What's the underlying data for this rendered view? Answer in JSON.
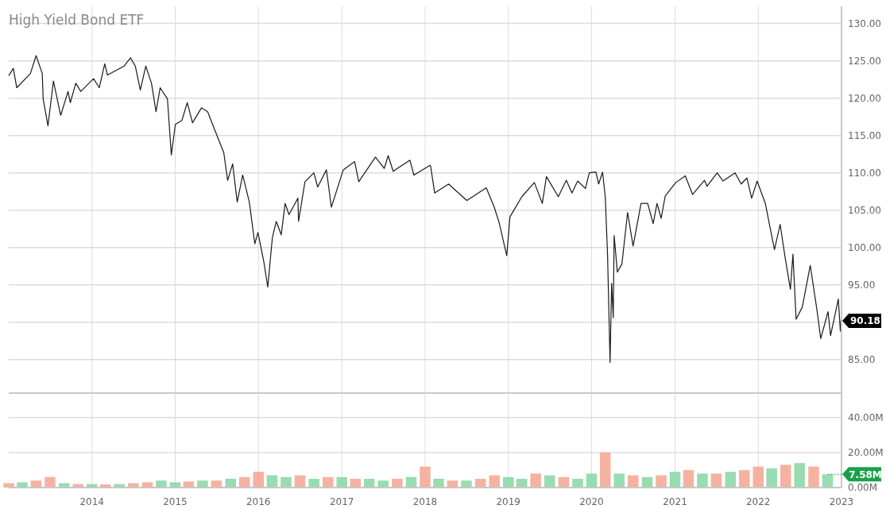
{
  "chart_data": [
    {
      "type": "line",
      "title": "High Yield Bond ETF",
      "x": [
        "2013-01-01",
        "2013-01-21",
        "2013-02-05",
        "2013-04-06",
        "2013-05-01",
        "2013-05-28",
        "2013-06-01",
        "2013-06-22",
        "2013-07-16",
        "2013-08-17",
        "2013-09-18",
        "2013-09-28",
        "2013-10-22",
        "2013-11-13",
        "2014-01-08",
        "2014-02-02",
        "2014-02-26",
        "2014-03-10",
        "2014-05-22",
        "2014-06-19",
        "2014-07-10",
        "2014-08-01",
        "2014-08-25",
        "2014-09-19",
        "2014-10-09",
        "2014-10-27",
        "2014-11-28",
        "2014-12-15",
        "2015-01-02",
        "2015-01-30",
        "2015-02-23",
        "2015-03-18",
        "2015-04-26",
        "2015-05-23",
        "2015-06-24",
        "2015-08-02",
        "2015-08-19",
        "2015-09-10",
        "2015-09-30",
        "2015-10-24",
        "2015-11-22",
        "2015-12-16",
        "2015-12-30",
        "2016-01-24",
        "2016-02-11",
        "2016-03-02",
        "2016-03-19",
        "2016-04-10",
        "2016-04-27",
        "2016-05-14",
        "2016-06-22",
        "2016-06-25",
        "2016-07-23",
        "2016-08-31",
        "2016-09-17",
        "2016-10-25",
        "2016-11-16",
        "2017-01-07",
        "2017-02-26",
        "2017-03-16",
        "2017-05-28",
        "2017-07-06",
        "2017-07-23",
        "2017-08-14",
        "2017-10-26",
        "2017-11-13",
        "2018-01-22",
        "2018-01-25",
        "2018-02-12",
        "2018-04-14",
        "2018-07-03",
        "2018-09-26",
        "2018-10-30",
        "2018-11-21",
        "2018-12-25",
        "2019-01-08",
        "2019-03-01",
        "2019-04-25",
        "2019-05-30",
        "2019-06-17",
        "2019-08-08",
        "2019-09-12",
        "2019-10-07",
        "2019-11-01",
        "2019-12-05",
        "2019-12-22",
        "2020-01-20",
        "2020-02-01",
        "2020-02-18",
        "2020-03-01",
        "2020-03-11",
        "2020-03-22",
        "2020-03-29",
        "2020-04-05",
        "2020-04-09",
        "2020-04-23",
        "2020-05-13",
        "2020-06-07",
        "2020-07-01",
        "2020-08-05",
        "2020-09-03",
        "2020-09-27",
        "2020-10-14",
        "2020-11-01",
        "2020-11-19",
        "2021-01-04",
        "2021-02-15",
        "2021-03-19",
        "2021-05-10",
        "2021-05-21",
        "2021-07-05",
        "2021-07-30",
        "2021-09-21",
        "2021-10-18",
        "2021-11-12",
        "2021-12-03",
        "2021-12-27",
        "2022-02-01",
        "2022-02-19",
        "2022-03-13",
        "2022-04-07",
        "2022-04-28",
        "2022-05-22",
        "2022-06-02",
        "2022-06-16",
        "2022-07-13",
        "2022-08-17",
        "2022-09-15",
        "2022-10-02",
        "2022-11-03",
        "2022-11-14",
        "2022-12-18",
        "2022-12-27",
        "2022-12-30"
      ],
      "series": [
        {
          "color": "#1a1a1a",
          "values": [
            123.0,
            124.0,
            121.4,
            123.3,
            125.7,
            123.3,
            119.9,
            116.3,
            122.3,
            117.7,
            120.9,
            119.4,
            122.0,
            120.9,
            122.6,
            121.4,
            124.6,
            123.1,
            124.3,
            125.4,
            124.3,
            121.1,
            124.3,
            122.0,
            118.2,
            121.4,
            119.9,
            112.4,
            116.5,
            117.0,
            119.4,
            116.7,
            118.7,
            118.2,
            115.7,
            112.7,
            109.0,
            111.2,
            106.1,
            109.7,
            106.1,
            100.5,
            102.0,
            98.2,
            94.7,
            101.3,
            103.5,
            101.7,
            105.9,
            104.4,
            106.6,
            103.5,
            108.8,
            110.0,
            108.1,
            110.4,
            105.4,
            110.4,
            111.5,
            108.8,
            112.1,
            110.6,
            112.3,
            110.2,
            111.7,
            109.7,
            111.0,
            110.9,
            107.3,
            108.5,
            106.3,
            108.0,
            105.5,
            103.4,
            98.9,
            104.1,
            106.8,
            108.7,
            105.9,
            109.5,
            106.8,
            109.0,
            107.3,
            108.9,
            107.9,
            110.0,
            110.1,
            108.5,
            110.1,
            106.8,
            99.1,
            84.6,
            95.2,
            90.6,
            101.6,
            96.7,
            97.8,
            104.7,
            100.2,
            105.9,
            105.9,
            103.2,
            105.9,
            103.9,
            106.9,
            108.7,
            109.6,
            107.1,
            109.0,
            108.2,
            110.0,
            108.9,
            110.0,
            108.5,
            109.3,
            106.6,
            108.9,
            105.9,
            103.1,
            99.7,
            103.1,
            98.8,
            94.4,
            99.1,
            90.4,
            92.0,
            97.6,
            91.7,
            87.8,
            91.4,
            88.2,
            93.1,
            88.8,
            90.18
          ]
        }
      ],
      "xlim": [
        "2013-01-01",
        "2023-01-01"
      ],
      "xticks": [
        {
          "value": "2014-01-01",
          "label": null
        },
        {
          "value": "2015-01-01",
          "label": null
        },
        {
          "value": "2016-01-01",
          "label": null
        },
        {
          "value": "2017-01-01",
          "label": null
        },
        {
          "value": "2018-01-01",
          "label": null
        },
        {
          "value": "2019-01-01",
          "label": null
        },
        {
          "value": "2020-01-01",
          "label": null
        },
        {
          "value": "2021-01-01",
          "label": null
        },
        {
          "value": "2022-01-01",
          "label": null
        },
        {
          "value": "2023-01-01",
          "label": null
        }
      ],
      "ylim": [
        80.5,
        132.3
      ],
      "yticks": [
        {
          "value": 85,
          "label": "85.00"
        },
        {
          "value": 90,
          "label": null
        },
        {
          "value": 95,
          "label": "95.00"
        },
        {
          "value": 100,
          "label": "100.00"
        },
        {
          "value": 105,
          "label": "105.00"
        },
        {
          "value": 110,
          "label": "110.00"
        },
        {
          "value": 115,
          "label": "115.00"
        },
        {
          "value": 120,
          "label": "120.00"
        },
        {
          "value": 125,
          "label": "125.00"
        },
        {
          "value": 130,
          "label": "130.00"
        }
      ],
      "grid": true,
      "tick_labels": "y",
      "annotations": [
        {
          "text": "90.18",
          "x": "2022-12-30",
          "y": 90.18
        }
      ]
    },
    {
      "type": "bar",
      "x": [
        "2013-01-01",
        "2013-03-01",
        "2013-05-01",
        "2013-07-01",
        "2013-09-01",
        "2013-11-01",
        "2014-01-01",
        "2014-03-01",
        "2014-05-01",
        "2014-07-01",
        "2014-09-01",
        "2014-11-01",
        "2015-01-01",
        "2015-03-01",
        "2015-05-01",
        "2015-07-01",
        "2015-09-01",
        "2015-11-01",
        "2016-01-01",
        "2016-03-01",
        "2016-05-01",
        "2016-07-01",
        "2016-09-01",
        "2016-11-01",
        "2017-01-01",
        "2017-03-01",
        "2017-05-01",
        "2017-07-01",
        "2017-09-01",
        "2017-11-01",
        "2018-01-01",
        "2018-03-01",
        "2018-05-01",
        "2018-07-01",
        "2018-09-01",
        "2018-11-01",
        "2019-01-01",
        "2019-03-01",
        "2019-05-01",
        "2019-07-01",
        "2019-09-01",
        "2019-11-01",
        "2020-01-01",
        "2020-03-01",
        "2020-05-01",
        "2020-07-01",
        "2020-09-01",
        "2020-11-01",
        "2021-01-01",
        "2021-03-01",
        "2021-05-01",
        "2021-07-01",
        "2021-09-01",
        "2021-11-01",
        "2022-01-01",
        "2022-03-01",
        "2022-05-01",
        "2022-07-01",
        "2022-09-01",
        "2022-11-01"
      ],
      "values": [
        2.5,
        3,
        4,
        6,
        2.5,
        2,
        2,
        1.8,
        2,
        2.5,
        3,
        4,
        3,
        3.5,
        4,
        4,
        5,
        6,
        9,
        7,
        6,
        7,
        5,
        6,
        6,
        5,
        5,
        4,
        5,
        6,
        12,
        5,
        4,
        4,
        5,
        7,
        6,
        5,
        8,
        7,
        6,
        5,
        8,
        20,
        8,
        7,
        6,
        7,
        9,
        10,
        8,
        8,
        9,
        10,
        12,
        11,
        13,
        14,
        12,
        7.58
      ],
      "colors": [
        "#f4a48f",
        "#86d6a3",
        "#f4a48f",
        "#f4a48f",
        "#86d6a3",
        "#f4a48f",
        "#86d6a3",
        "#f4a48f",
        "#86d6a3",
        "#f4a48f",
        "#f4a48f",
        "#86d6a3",
        "#86d6a3",
        "#f4a48f",
        "#86d6a3",
        "#f4a48f",
        "#86d6a3",
        "#f4a48f",
        "#f4a48f",
        "#86d6a3",
        "#86d6a3",
        "#f4a48f",
        "#86d6a3",
        "#f4a48f",
        "#86d6a3",
        "#f4a48f",
        "#86d6a3",
        "#86d6a3",
        "#f4a48f",
        "#86d6a3",
        "#f4a48f",
        "#86d6a3",
        "#f4a48f",
        "#86d6a3",
        "#f4a48f",
        "#f4a48f",
        "#86d6a3",
        "#86d6a3",
        "#f4a48f",
        "#86d6a3",
        "#f4a48f",
        "#86d6a3",
        "#86d6a3",
        "#f4a48f",
        "#86d6a3",
        "#f4a48f",
        "#86d6a3",
        "#f4a48f",
        "#86d6a3",
        "#f4a48f",
        "#86d6a3",
        "#f4a48f",
        "#86d6a3",
        "#f4a48f",
        "#f4a48f",
        "#86d6a3",
        "#f4a48f",
        "#86d6a3",
        "#f4a48f",
        "#86d6a3"
      ],
      "xlim": [
        "2013-01-01",
        "2023-01-01"
      ],
      "xticks": [
        {
          "value": "2014-01-01",
          "label": "2014"
        },
        {
          "value": "2015-01-01",
          "label": "2015"
        },
        {
          "value": "2016-01-01",
          "label": "2016"
        },
        {
          "value": "2017-01-01",
          "label": "2017"
        },
        {
          "value": "2018-01-01",
          "label": "2018"
        },
        {
          "value": "2019-01-01",
          "label": "2019"
        },
        {
          "value": "2020-01-01",
          "label": "2020"
        },
        {
          "value": "2021-01-01",
          "label": "2021"
        },
        {
          "value": "2022-01-01",
          "label": "2022"
        },
        {
          "value": "2023-01-01",
          "label": "2023"
        }
      ],
      "ylim": [
        0,
        54
      ],
      "yticks": [
        {
          "value": 0,
          "label": "0.00M"
        },
        {
          "value": 20,
          "label": "20.00M"
        },
        {
          "value": 40,
          "label": "40.00M"
        }
      ],
      "grid": true,
      "annotations": [
        {
          "text": "7.58M",
          "x": "2022-11-01",
          "y": 7.58
        }
      ]
    }
  ]
}
